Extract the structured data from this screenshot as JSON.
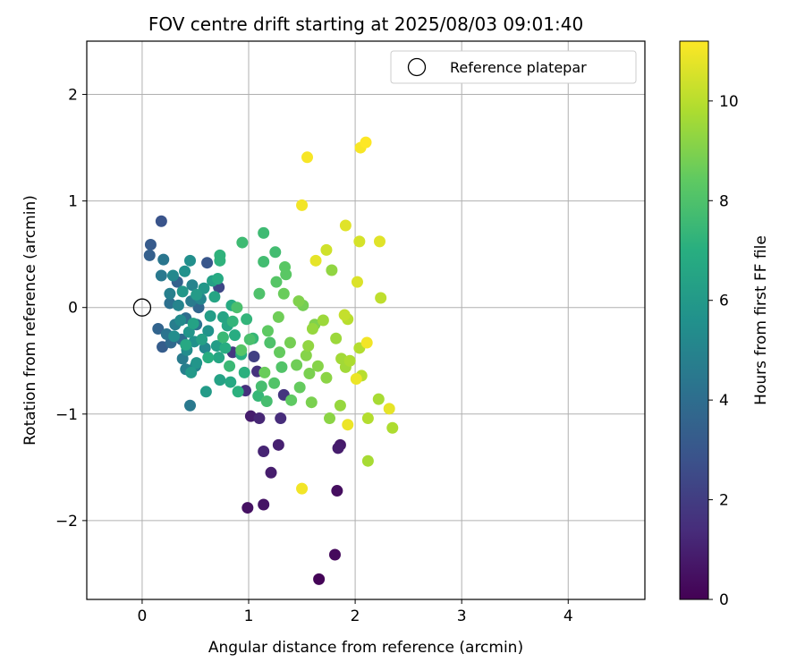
{
  "chart_data": {
    "type": "scatter",
    "title": "FOV centre drift starting at 2025/08/03 09:01:40",
    "xlabel": "Angular distance from reference (arcmin)",
    "ylabel": "Rotation from reference (arcmin)",
    "xlim": [
      -0.52,
      4.72
    ],
    "ylim": [
      -2.74,
      2.5
    ],
    "xticks": [
      0,
      1,
      2,
      3,
      4
    ],
    "yticks": [
      -2,
      -1,
      0,
      1,
      2
    ],
    "grid": true,
    "colormap": "viridis",
    "colorbar": {
      "label": "Hours from first FF file",
      "range": [
        0,
        11.2
      ],
      "ticks": [
        0,
        2,
        4,
        6,
        8,
        10
      ]
    },
    "legend": {
      "position": "top-right",
      "entries": [
        "Reference platepar"
      ]
    },
    "reference_point": {
      "x": 0,
      "y": 0
    },
    "points": [
      {
        "x": 1.66,
        "y": -2.55,
        "h": 0.1
      },
      {
        "x": 1.81,
        "y": -2.32,
        "h": 0.3
      },
      {
        "x": 0.99,
        "y": -1.88,
        "h": 0.5
      },
      {
        "x": 1.14,
        "y": -1.85,
        "h": 0.6
      },
      {
        "x": 1.83,
        "y": -1.72,
        "h": 0.4
      },
      {
        "x": 1.21,
        "y": -1.55,
        "h": 0.9
      },
      {
        "x": 1.14,
        "y": -1.35,
        "h": 1.1
      },
      {
        "x": 1.28,
        "y": -1.29,
        "h": 1.0
      },
      {
        "x": 1.86,
        "y": -1.29,
        "h": 0.8
      },
      {
        "x": 1.84,
        "y": -1.32,
        "h": 0.9
      },
      {
        "x": 1.02,
        "y": -1.02,
        "h": 0.9
      },
      {
        "x": 1.1,
        "y": -1.04,
        "h": 1.2
      },
      {
        "x": 1.3,
        "y": -1.04,
        "h": 1.4
      },
      {
        "x": 0.97,
        "y": -0.78,
        "h": 1.5
      },
      {
        "x": 1.33,
        "y": -0.82,
        "h": 1.7
      },
      {
        "x": 0.85,
        "y": -0.42,
        "h": 1.8
      },
      {
        "x": 1.05,
        "y": -0.46,
        "h": 2.1
      },
      {
        "x": 1.08,
        "y": -0.6,
        "h": 1.6
      },
      {
        "x": 0.72,
        "y": 0.19,
        "h": 2.4
      },
      {
        "x": 0.18,
        "y": 0.81,
        "h": 2.9
      },
      {
        "x": 0.08,
        "y": 0.59,
        "h": 3.2
      },
      {
        "x": 0.07,
        "y": 0.49,
        "h": 3.4
      },
      {
        "x": 0.61,
        "y": 0.42,
        "h": 3.0
      },
      {
        "x": 0.33,
        "y": 0.24,
        "h": 3.5
      },
      {
        "x": 0.15,
        "y": -0.2,
        "h": 3.6
      },
      {
        "x": 0.19,
        "y": -0.37,
        "h": 3.3
      },
      {
        "x": 0.27,
        "y": -0.33,
        "h": 3.8
      },
      {
        "x": 0.37,
        "y": -0.3,
        "h": 3.9
      },
      {
        "x": 0.53,
        "y": 0.0,
        "h": 3.7
      },
      {
        "x": 0.41,
        "y": -0.1,
        "h": 4.0
      },
      {
        "x": 0.51,
        "y": -0.16,
        "h": 4.2
      },
      {
        "x": 0.26,
        "y": 0.04,
        "h": 4.1
      },
      {
        "x": 0.23,
        "y": -0.25,
        "h": 4.3
      },
      {
        "x": 0.2,
        "y": 0.45,
        "h": 4.4
      },
      {
        "x": 0.18,
        "y": 0.3,
        "h": 4.5
      },
      {
        "x": 0.46,
        "y": 0.06,
        "h": 4.6
      },
      {
        "x": 0.45,
        "y": -0.92,
        "h": 4.5
      },
      {
        "x": 0.31,
        "y": -0.16,
        "h": 4.7
      },
      {
        "x": 0.38,
        "y": -0.48,
        "h": 4.6
      },
      {
        "x": 0.41,
        "y": -0.58,
        "h": 4.8
      },
      {
        "x": 0.5,
        "y": -0.55,
        "h": 4.9
      },
      {
        "x": 0.26,
        "y": 0.13,
        "h": 4.8
      },
      {
        "x": 0.34,
        "y": 0.02,
        "h": 5.0
      },
      {
        "x": 0.47,
        "y": 0.21,
        "h": 5.0
      },
      {
        "x": 0.55,
        "y": 0.08,
        "h": 5.1
      },
      {
        "x": 0.59,
        "y": -0.38,
        "h": 5.2
      },
      {
        "x": 0.29,
        "y": 0.3,
        "h": 5.2
      },
      {
        "x": 0.36,
        "y": -0.12,
        "h": 5.3
      },
      {
        "x": 0.42,
        "y": -0.4,
        "h": 5.4
      },
      {
        "x": 0.3,
        "y": -0.27,
        "h": 5.4
      },
      {
        "x": 0.45,
        "y": 0.44,
        "h": 5.5
      },
      {
        "x": 0.4,
        "y": 0.34,
        "h": 5.6
      },
      {
        "x": 0.49,
        "y": -0.32,
        "h": 5.6
      },
      {
        "x": 0.62,
        "y": -0.22,
        "h": 5.7
      },
      {
        "x": 0.51,
        "y": -0.52,
        "h": 5.8
      },
      {
        "x": 0.44,
        "y": -0.23,
        "h": 5.8
      },
      {
        "x": 0.38,
        "y": 0.15,
        "h": 5.9
      },
      {
        "x": 0.58,
        "y": 0.18,
        "h": 5.9
      },
      {
        "x": 0.46,
        "y": -0.61,
        "h": 6.0
      },
      {
        "x": 0.6,
        "y": -0.79,
        "h": 6.1
      },
      {
        "x": 0.51,
        "y": 0.12,
        "h": 6.1
      },
      {
        "x": 0.64,
        "y": -0.08,
        "h": 6.2
      },
      {
        "x": 0.7,
        "y": -0.36,
        "h": 6.2
      },
      {
        "x": 0.56,
        "y": -0.3,
        "h": 6.3
      },
      {
        "x": 0.66,
        "y": 0.25,
        "h": 6.3
      },
      {
        "x": 0.73,
        "y": -0.68,
        "h": 6.4
      },
      {
        "x": 0.48,
        "y": -0.15,
        "h": 6.4
      },
      {
        "x": 0.76,
        "y": -0.09,
        "h": 6.5
      },
      {
        "x": 0.68,
        "y": 0.1,
        "h": 6.5
      },
      {
        "x": 0.72,
        "y": -0.47,
        "h": 6.6
      },
      {
        "x": 0.8,
        "y": -0.17,
        "h": 6.6
      },
      {
        "x": 0.83,
        "y": -0.7,
        "h": 6.7
      },
      {
        "x": 0.41,
        "y": -0.35,
        "h": 6.7
      },
      {
        "x": 0.71,
        "y": 0.27,
        "h": 6.8
      },
      {
        "x": 0.84,
        "y": 0.02,
        "h": 6.8
      },
      {
        "x": 0.87,
        "y": -0.26,
        "h": 6.9
      },
      {
        "x": 0.78,
        "y": -0.38,
        "h": 6.9
      },
      {
        "x": 0.62,
        "y": -0.47,
        "h": 7.0
      },
      {
        "x": 0.93,
        "y": -0.44,
        "h": 7.0
      },
      {
        "x": 0.96,
        "y": -0.61,
        "h": 7.1
      },
      {
        "x": 0.9,
        "y": -0.79,
        "h": 7.1
      },
      {
        "x": 0.73,
        "y": 0.49,
        "h": 7.2
      },
      {
        "x": 0.73,
        "y": 0.44,
        "h": 7.2
      },
      {
        "x": 0.85,
        "y": -0.13,
        "h": 7.3
      },
      {
        "x": 0.98,
        "y": -0.11,
        "h": 7.3
      },
      {
        "x": 1.04,
        "y": -0.29,
        "h": 7.4
      },
      {
        "x": 1.09,
        "y": -0.83,
        "h": 7.4
      },
      {
        "x": 0.82,
        "y": -0.55,
        "h": 7.5
      },
      {
        "x": 0.76,
        "y": -0.28,
        "h": 7.5
      },
      {
        "x": 0.94,
        "y": 0.61,
        "h": 7.6
      },
      {
        "x": 1.14,
        "y": 0.7,
        "h": 7.6
      },
      {
        "x": 1.14,
        "y": 0.43,
        "h": 7.7
      },
      {
        "x": 1.25,
        "y": 0.52,
        "h": 7.7
      },
      {
        "x": 1.12,
        "y": -0.74,
        "h": 7.8
      },
      {
        "x": 1.17,
        "y": -0.88,
        "h": 7.8
      },
      {
        "x": 0.89,
        "y": 0.0,
        "h": 7.9
      },
      {
        "x": 1.01,
        "y": -0.3,
        "h": 7.9
      },
      {
        "x": 1.1,
        "y": 0.13,
        "h": 8.0
      },
      {
        "x": 1.2,
        "y": -0.33,
        "h": 8.0
      },
      {
        "x": 1.24,
        "y": -0.71,
        "h": 8.1
      },
      {
        "x": 1.31,
        "y": -0.56,
        "h": 8.1
      },
      {
        "x": 0.93,
        "y": -0.4,
        "h": 8.2
      },
      {
        "x": 1.26,
        "y": 0.24,
        "h": 8.2
      },
      {
        "x": 1.34,
        "y": 0.38,
        "h": 8.3
      },
      {
        "x": 1.35,
        "y": 0.31,
        "h": 8.3
      },
      {
        "x": 1.18,
        "y": -0.22,
        "h": 8.4
      },
      {
        "x": 1.4,
        "y": -0.87,
        "h": 8.4
      },
      {
        "x": 1.48,
        "y": -0.75,
        "h": 8.5
      },
      {
        "x": 1.29,
        "y": -0.42,
        "h": 8.5
      },
      {
        "x": 1.33,
        "y": 0.13,
        "h": 8.6
      },
      {
        "x": 1.15,
        "y": -0.61,
        "h": 8.6
      },
      {
        "x": 1.45,
        "y": -0.54,
        "h": 8.7
      },
      {
        "x": 1.28,
        "y": -0.09,
        "h": 8.7
      },
      {
        "x": 1.39,
        "y": -0.33,
        "h": 8.8
      },
      {
        "x": 1.51,
        "y": 0.02,
        "h": 8.8
      },
      {
        "x": 1.59,
        "y": -0.89,
        "h": 8.9
      },
      {
        "x": 1.57,
        "y": -0.62,
        "h": 8.9
      },
      {
        "x": 1.62,
        "y": -0.16,
        "h": 9.0
      },
      {
        "x": 1.47,
        "y": 0.06,
        "h": 9.0
      },
      {
        "x": 1.65,
        "y": -0.55,
        "h": 9.1
      },
      {
        "x": 1.54,
        "y": -0.45,
        "h": 9.1
      },
      {
        "x": 1.76,
        "y": -1.04,
        "h": 9.2
      },
      {
        "x": 1.73,
        "y": -0.66,
        "h": 9.2
      },
      {
        "x": 1.78,
        "y": 0.35,
        "h": 9.3
      },
      {
        "x": 1.56,
        "y": -0.36,
        "h": 9.3
      },
      {
        "x": 1.6,
        "y": -0.2,
        "h": 9.4
      },
      {
        "x": 1.86,
        "y": -0.92,
        "h": 9.4
      },
      {
        "x": 1.7,
        "y": -0.12,
        "h": 9.5
      },
      {
        "x": 1.82,
        "y": -0.29,
        "h": 9.5
      },
      {
        "x": 1.87,
        "y": -0.48,
        "h": 9.6
      },
      {
        "x": 1.91,
        "y": -0.56,
        "h": 9.6
      },
      {
        "x": 2.12,
        "y": -1.44,
        "h": 9.7
      },
      {
        "x": 2.22,
        "y": -0.86,
        "h": 9.7
      },
      {
        "x": 1.95,
        "y": -0.5,
        "h": 9.8
      },
      {
        "x": 2.35,
        "y": -1.13,
        "h": 9.8
      },
      {
        "x": 2.04,
        "y": -0.38,
        "h": 9.9
      },
      {
        "x": 2.12,
        "y": -1.04,
        "h": 9.9
      },
      {
        "x": 2.06,
        "y": -0.64,
        "h": 10.0
      },
      {
        "x": 1.93,
        "y": -0.11,
        "h": 10.0
      },
      {
        "x": 2.24,
        "y": 0.09,
        "h": 10.1
      },
      {
        "x": 1.9,
        "y": -0.07,
        "h": 10.2
      },
      {
        "x": 1.73,
        "y": 0.54,
        "h": 10.4
      },
      {
        "x": 2.04,
        "y": 0.62,
        "h": 10.5
      },
      {
        "x": 2.02,
        "y": 0.24,
        "h": 10.6
      },
      {
        "x": 1.91,
        "y": 0.77,
        "h": 10.7
      },
      {
        "x": 2.23,
        "y": 0.62,
        "h": 10.7
      },
      {
        "x": 1.63,
        "y": 0.44,
        "h": 10.8
      },
      {
        "x": 2.32,
        "y": -0.95,
        "h": 10.8
      },
      {
        "x": 1.93,
        "y": -1.1,
        "h": 10.9
      },
      {
        "x": 2.01,
        "y": -0.67,
        "h": 10.9
      },
      {
        "x": 2.11,
        "y": -0.33,
        "h": 11.0
      },
      {
        "x": 1.5,
        "y": 0.96,
        "h": 11.0
      },
      {
        "x": 1.55,
        "y": 1.41,
        "h": 11.1
      },
      {
        "x": 2.05,
        "y": 1.5,
        "h": 11.1
      },
      {
        "x": 2.1,
        "y": 1.55,
        "h": 11.2
      },
      {
        "x": 1.5,
        "y": -1.7,
        "h": 11.0
      }
    ]
  }
}
